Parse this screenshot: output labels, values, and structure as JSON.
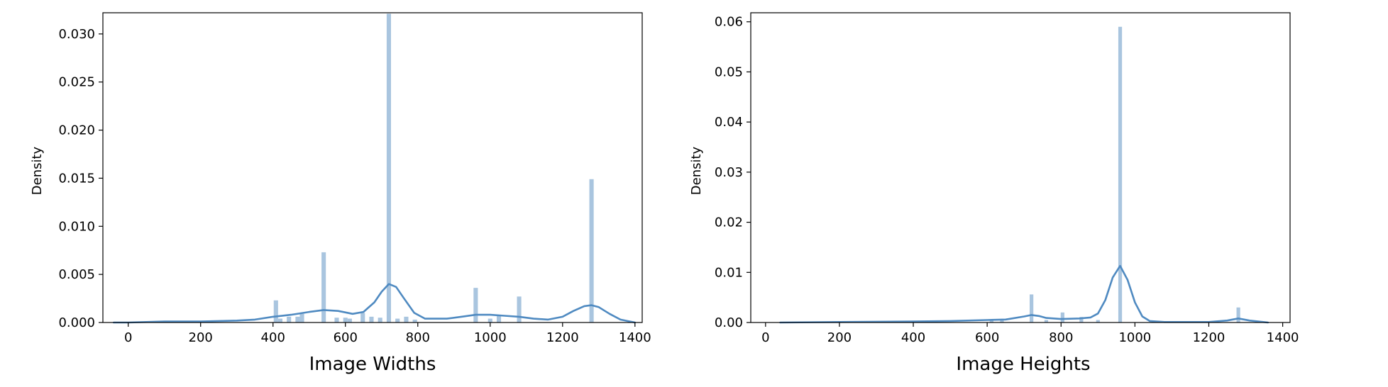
{
  "chart_data": [
    {
      "type": "histogram",
      "title": "",
      "xlabel": "Image Widths",
      "ylabel": "Density",
      "xlim": [
        -70,
        1420
      ],
      "ylim": [
        0,
        0.0322
      ],
      "xticks": [
        0,
        200,
        400,
        600,
        800,
        1000,
        1200,
        1400
      ],
      "xtick_labels": [
        "0",
        "200",
        "400",
        "600",
        "800",
        "1000",
        "1200",
        "1400"
      ],
      "yticks": [
        0,
        0.005,
        0.01,
        0.015,
        0.02,
        0.025,
        0.03
      ],
      "ytick_labels": [
        "0.000",
        "0.005",
        "0.010",
        "0.015",
        "0.020",
        "0.025",
        "0.030"
      ],
      "grid": false,
      "bar_color": "#a9c5df",
      "kde_color": "#4f8ac1",
      "histogram": {
        "bin_width": 12,
        "bins": [
          {
            "x": 408,
            "density": 0.0023
          },
          {
            "x": 420,
            "density": 0.0004
          },
          {
            "x": 444,
            "density": 0.0006
          },
          {
            "x": 468,
            "density": 0.0006
          },
          {
            "x": 480,
            "density": 0.0009
          },
          {
            "x": 540,
            "density": 0.0073
          },
          {
            "x": 576,
            "density": 0.0005
          },
          {
            "x": 600,
            "density": 0.0005
          },
          {
            "x": 612,
            "density": 0.0004
          },
          {
            "x": 648,
            "density": 0.001
          },
          {
            "x": 672,
            "density": 0.0006
          },
          {
            "x": 696,
            "density": 0.0005
          },
          {
            "x": 720,
            "density": 0.0321
          },
          {
            "x": 744,
            "density": 0.0004
          },
          {
            "x": 768,
            "density": 0.0006
          },
          {
            "x": 792,
            "density": 0.0003
          },
          {
            "x": 960,
            "density": 0.0036
          },
          {
            "x": 1000,
            "density": 0.0004
          },
          {
            "x": 1024,
            "density": 0.0007
          },
          {
            "x": 1080,
            "density": 0.0027
          },
          {
            "x": 1280,
            "density": 0.0149
          }
        ]
      },
      "kde": {
        "x": [
          -40,
          0,
          100,
          200,
          300,
          350,
          400,
          450,
          500,
          540,
          580,
          620,
          650,
          680,
          700,
          720,
          740,
          760,
          790,
          820,
          850,
          880,
          920,
          960,
          1000,
          1040,
          1080,
          1120,
          1160,
          1200,
          1230,
          1260,
          1280,
          1300,
          1330,
          1360,
          1400
        ],
        "y": [
          0.0,
          0.0,
          0.0001,
          0.0001,
          0.0002,
          0.0003,
          0.0006,
          0.0008,
          0.0011,
          0.0013,
          0.0012,
          0.0009,
          0.0011,
          0.0021,
          0.0032,
          0.004,
          0.0037,
          0.0026,
          0.001,
          0.0004,
          0.0004,
          0.0004,
          0.0006,
          0.0008,
          0.0008,
          0.0007,
          0.0006,
          0.0004,
          0.0003,
          0.0006,
          0.0012,
          0.0017,
          0.0018,
          0.0016,
          0.0009,
          0.0003,
          0.0
        ]
      }
    },
    {
      "type": "histogram",
      "title": "",
      "xlabel": "Image Heights",
      "ylabel": "Density",
      "xlim": [
        -40,
        1420
      ],
      "ylim": [
        0,
        0.0618
      ],
      "xticks": [
        0,
        200,
        400,
        600,
        800,
        1000,
        1200,
        1400
      ],
      "xtick_labels": [
        "0",
        "200",
        "400",
        "600",
        "800",
        "1000",
        "1200",
        "1400"
      ],
      "yticks": [
        0,
        0.01,
        0.02,
        0.03,
        0.04,
        0.05,
        0.06
      ],
      "ytick_labels": [
        "0.00",
        "0.01",
        "0.02",
        "0.03",
        "0.04",
        "0.05",
        "0.06"
      ],
      "grid": false,
      "bar_color": "#a9c5df",
      "kde_color": "#4f8ac1",
      "histogram": {
        "bin_width": 10,
        "bins": [
          {
            "x": 612,
            "density": 0.0005
          },
          {
            "x": 640,
            "density": 0.0006
          },
          {
            "x": 720,
            "density": 0.0056
          },
          {
            "x": 760,
            "density": 0.0005
          },
          {
            "x": 804,
            "density": 0.002
          },
          {
            "x": 855,
            "density": 0.0011
          },
          {
            "x": 900,
            "density": 0.0005
          },
          {
            "x": 960,
            "density": 0.059
          },
          {
            "x": 1280,
            "density": 0.003
          }
        ]
      },
      "kde": {
        "x": [
          40,
          200,
          400,
          500,
          600,
          650,
          700,
          720,
          740,
          760,
          800,
          850,
          880,
          900,
          920,
          940,
          960,
          980,
          1000,
          1020,
          1040,
          1080,
          1200,
          1250,
          1280,
          1310,
          1360
        ],
        "y": [
          0.0,
          0.0001,
          0.0002,
          0.0003,
          0.0005,
          0.0006,
          0.0012,
          0.0015,
          0.0013,
          0.0009,
          0.0007,
          0.0008,
          0.001,
          0.0018,
          0.0045,
          0.009,
          0.0113,
          0.0085,
          0.004,
          0.0012,
          0.0003,
          0.0001,
          0.0001,
          0.0004,
          0.0008,
          0.0004,
          0.0
        ]
      }
    }
  ]
}
